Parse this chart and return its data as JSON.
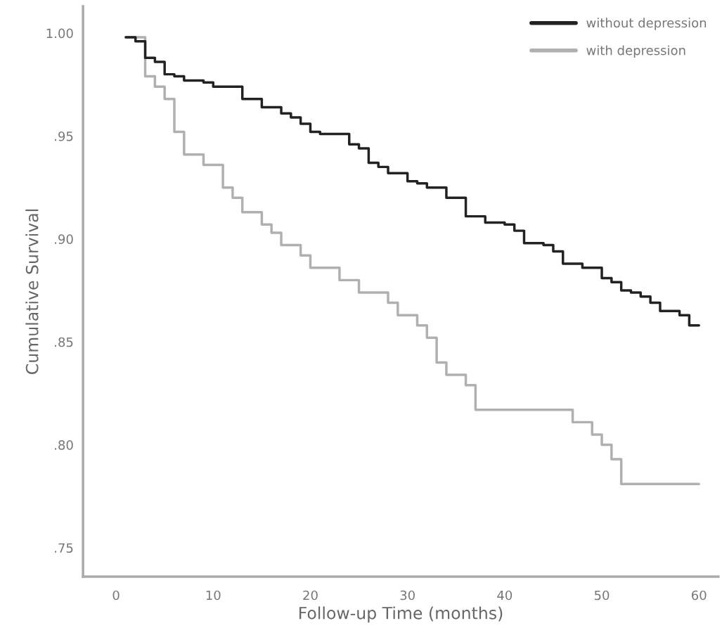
{
  "chart_data": {
    "type": "step",
    "xlabel": "Follow-up Time (months)",
    "ylabel": "Cumulative Survival",
    "xlim": [
      -3.4,
      62
    ],
    "ylim": [
      0.736,
      1.013
    ],
    "xticks": [
      0,
      10,
      20,
      30,
      40,
      50,
      60
    ],
    "yticks": [
      {
        "value": 0.75,
        "label": ".75"
      },
      {
        "value": 0.8,
        "label": ".80"
      },
      {
        "value": 0.85,
        "label": ".85"
      },
      {
        "value": 0.9,
        "label": ".90"
      },
      {
        "value": 0.95,
        "label": ".95"
      },
      {
        "value": 1.0,
        "label": "1.00"
      }
    ],
    "grid": false,
    "legend": "top right",
    "line_style": "solid",
    "marker": "none",
    "series": [
      {
        "name": "without depression",
        "color": "#222222",
        "x": [
          1,
          2,
          3,
          4,
          5,
          6,
          7,
          9,
          10,
          13,
          15,
          17,
          18,
          19,
          20,
          21,
          24,
          25,
          26,
          27,
          28,
          30,
          31,
          32,
          34,
          36,
          38,
          40,
          41,
          42,
          44,
          45,
          46,
          48,
          50,
          51,
          52,
          53,
          54,
          55,
          56,
          58,
          59,
          60
        ],
        "values": [
          0.998,
          0.996,
          0.988,
          0.986,
          0.98,
          0.979,
          0.977,
          0.976,
          0.974,
          0.968,
          0.964,
          0.961,
          0.959,
          0.956,
          0.952,
          0.951,
          0.946,
          0.944,
          0.937,
          0.935,
          0.932,
          0.928,
          0.927,
          0.925,
          0.92,
          0.911,
          0.908,
          0.907,
          0.904,
          0.898,
          0.897,
          0.894,
          0.888,
          0.886,
          0.881,
          0.879,
          0.875,
          0.874,
          0.872,
          0.869,
          0.865,
          0.863,
          0.858,
          0.858
        ]
      },
      {
        "name": "with depression",
        "color": "#b0b0b0",
        "x": [
          1,
          3,
          4,
          5,
          6,
          7,
          9,
          11,
          12,
          13,
          15,
          16,
          17,
          19,
          20,
          23,
          25,
          28,
          29,
          31,
          32,
          33,
          34,
          36,
          37,
          47,
          49,
          50,
          51,
          52,
          60
        ],
        "values": [
          0.998,
          0.979,
          0.974,
          0.968,
          0.952,
          0.941,
          0.936,
          0.925,
          0.92,
          0.913,
          0.907,
          0.903,
          0.897,
          0.892,
          0.886,
          0.88,
          0.874,
          0.869,
          0.863,
          0.858,
          0.852,
          0.84,
          0.834,
          0.829,
          0.817,
          0.811,
          0.805,
          0.8,
          0.793,
          0.781,
          0.781
        ]
      }
    ]
  }
}
